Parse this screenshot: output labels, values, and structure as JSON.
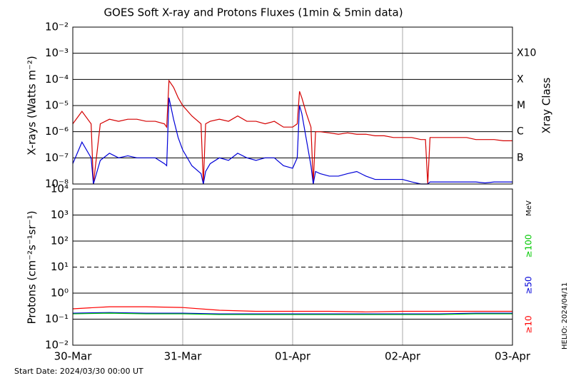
{
  "chart_data": [
    {
      "type": "line",
      "title": "GOES Soft X-ray and Protons Fluxes   (1min & 5min data)",
      "ylabel": "X-rays (Watts m⁻²)",
      "y2label": "Xray Class",
      "log": true,
      "grid": true,
      "xlim": [
        0,
        96
      ],
      "ylim": [
        1e-08,
        0.01
      ],
      "yticks": [
        {
          "value": 0.01,
          "label": "10⁻²"
        },
        {
          "value": 0.001,
          "label": "10⁻³"
        },
        {
          "value": 0.0001,
          "label": "10⁻⁴"
        },
        {
          "value": 1e-05,
          "label": "10⁻⁵"
        },
        {
          "value": 1e-06,
          "label": "10⁻⁶"
        },
        {
          "value": 1e-07,
          "label": "10⁻⁷"
        },
        {
          "value": 1e-08,
          "label": "10⁻⁸"
        }
      ],
      "y2lim": [
        1e-08,
        0.01
      ],
      "y2ticks": [
        {
          "value": 0.001,
          "label": "X10"
        },
        {
          "value": 0.0001,
          "label": "X"
        },
        {
          "value": 1e-05,
          "label": "M"
        },
        {
          "value": 1e-06,
          "label": "C"
        },
        {
          "value": 1e-07,
          "label": "B"
        }
      ],
      "x": [
        0,
        2,
        4,
        4.5,
        6,
        8,
        10,
        12,
        14,
        16,
        18,
        20,
        20.5,
        21,
        22,
        23,
        24,
        26,
        28,
        28.5,
        29,
        30,
        32,
        34,
        36,
        38,
        40,
        42,
        44,
        46,
        48,
        49,
        49.5,
        50,
        51,
        52,
        52.5,
        53,
        54,
        56,
        58,
        60,
        62,
        64,
        66,
        68,
        70,
        72,
        74,
        76,
        77,
        77.5,
        78,
        80,
        82,
        84,
        86,
        88,
        90,
        92,
        94,
        96
      ],
      "series": [
        {
          "color": "#d40000",
          "values": [
            2e-06,
            6e-06,
            2e-06,
            1e-08,
            2e-06,
            3e-06,
            2.5e-06,
            3e-06,
            3e-06,
            2.5e-06,
            2.5e-06,
            2e-06,
            1.5e-06,
            9e-05,
            5e-05,
            2e-05,
            1e-05,
            4e-06,
            2e-06,
            1e-08,
            2e-06,
            2.5e-06,
            3e-06,
            2.5e-06,
            4e-06,
            2.5e-06,
            2.5e-06,
            2e-06,
            2.5e-06,
            1.5e-06,
            1.5e-06,
            2e-06,
            3.5e-05,
            2e-05,
            5e-06,
            1.5e-06,
            1e-08,
            1e-06,
            1e-06,
            9e-07,
            8e-07,
            9e-07,
            8e-07,
            8e-07,
            7e-07,
            7e-07,
            6e-07,
            6e-07,
            6e-07,
            5e-07,
            5e-07,
            1e-08,
            6e-07,
            6e-07,
            6e-07,
            6e-07,
            6e-07,
            5e-07,
            5e-07,
            5e-07,
            4.5e-07,
            4.5e-07
          ]
        },
        {
          "color": "#0000d8",
          "values": [
            6e-08,
            4e-07,
            1e-07,
            1e-08,
            8e-08,
            1.5e-07,
            1e-07,
            1.2e-07,
            1e-07,
            1e-07,
            1e-07,
            6e-08,
            5e-08,
            2e-05,
            3e-06,
            6e-07,
            2e-07,
            5e-08,
            2.5e-08,
            1e-08,
            3e-08,
            6e-08,
            1e-07,
            8e-08,
            1.5e-07,
            1e-07,
            8e-08,
            1e-07,
            1e-07,
            5e-08,
            4e-08,
            1e-07,
            1e-05,
            5e-06,
            5e-07,
            5e-08,
            1e-08,
            3e-08,
            2.5e-08,
            2e-08,
            2e-08,
            2.5e-08,
            3e-08,
            2e-08,
            1.5e-08,
            1.5e-08,
            1.5e-08,
            1.5e-08,
            1.2e-08,
            1e-08,
            1e-08,
            1e-08,
            1.2e-08,
            1.2e-08,
            1.2e-08,
            1.2e-08,
            1.2e-08,
            1.2e-08,
            1.1e-08,
            1.2e-08,
            1.2e-08,
            1.2e-08
          ]
        }
      ]
    },
    {
      "type": "line",
      "ylabel": "Protons (cm⁻²s⁻¹sr⁻¹)",
      "log": true,
      "grid": true,
      "legend_unit": "MeV",
      "threshold": 10,
      "xlim": [
        0,
        96
      ],
      "ylim": [
        0.01,
        10000
      ],
      "xticks": [
        {
          "value": 0,
          "label": "30-Mar"
        },
        {
          "value": 24,
          "label": "31-Mar"
        },
        {
          "value": 48,
          "label": "01-Apr"
        },
        {
          "value": 72,
          "label": "02-Apr"
        },
        {
          "value": 96,
          "label": "03-Apr"
        }
      ],
      "yticks": [
        {
          "value": 10000,
          "label": "10⁴"
        },
        {
          "value": 1000,
          "label": "10³"
        },
        {
          "value": 100,
          "label": "10²"
        },
        {
          "value": 10,
          "label": "10¹"
        },
        {
          "value": 1,
          "label": "10⁰"
        },
        {
          "value": 0.1,
          "label": "10⁻¹"
        },
        {
          "value": 0.01,
          "label": "10⁻²"
        }
      ],
      "x": [
        0,
        8,
        16,
        24,
        32,
        40,
        48,
        56,
        64,
        72,
        80,
        88,
        96
      ],
      "series": [
        {
          "name": "≥100",
          "color": "#00c800",
          "values": [
            0.16,
            0.17,
            0.16,
            0.16,
            0.15,
            0.15,
            0.15,
            0.15,
            0.15,
            0.15,
            0.15,
            0.16,
            0.16
          ]
        },
        {
          "name": "≥50",
          "color": "#0000d8",
          "values": [
            0.17,
            0.18,
            0.17,
            0.17,
            0.16,
            0.16,
            0.16,
            0.16,
            0.16,
            0.16,
            0.16,
            0.17,
            0.17
          ]
        },
        {
          "name": "≥10",
          "color": "#ff0000",
          "values": [
            0.25,
            0.3,
            0.3,
            0.28,
            0.22,
            0.2,
            0.2,
            0.2,
            0.19,
            0.2,
            0.2,
            0.2,
            0.2
          ]
        }
      ]
    }
  ],
  "footer": "Start Date: 2024/03/30 00:00 UT",
  "stamp": "HELIO: 2024/04/11"
}
